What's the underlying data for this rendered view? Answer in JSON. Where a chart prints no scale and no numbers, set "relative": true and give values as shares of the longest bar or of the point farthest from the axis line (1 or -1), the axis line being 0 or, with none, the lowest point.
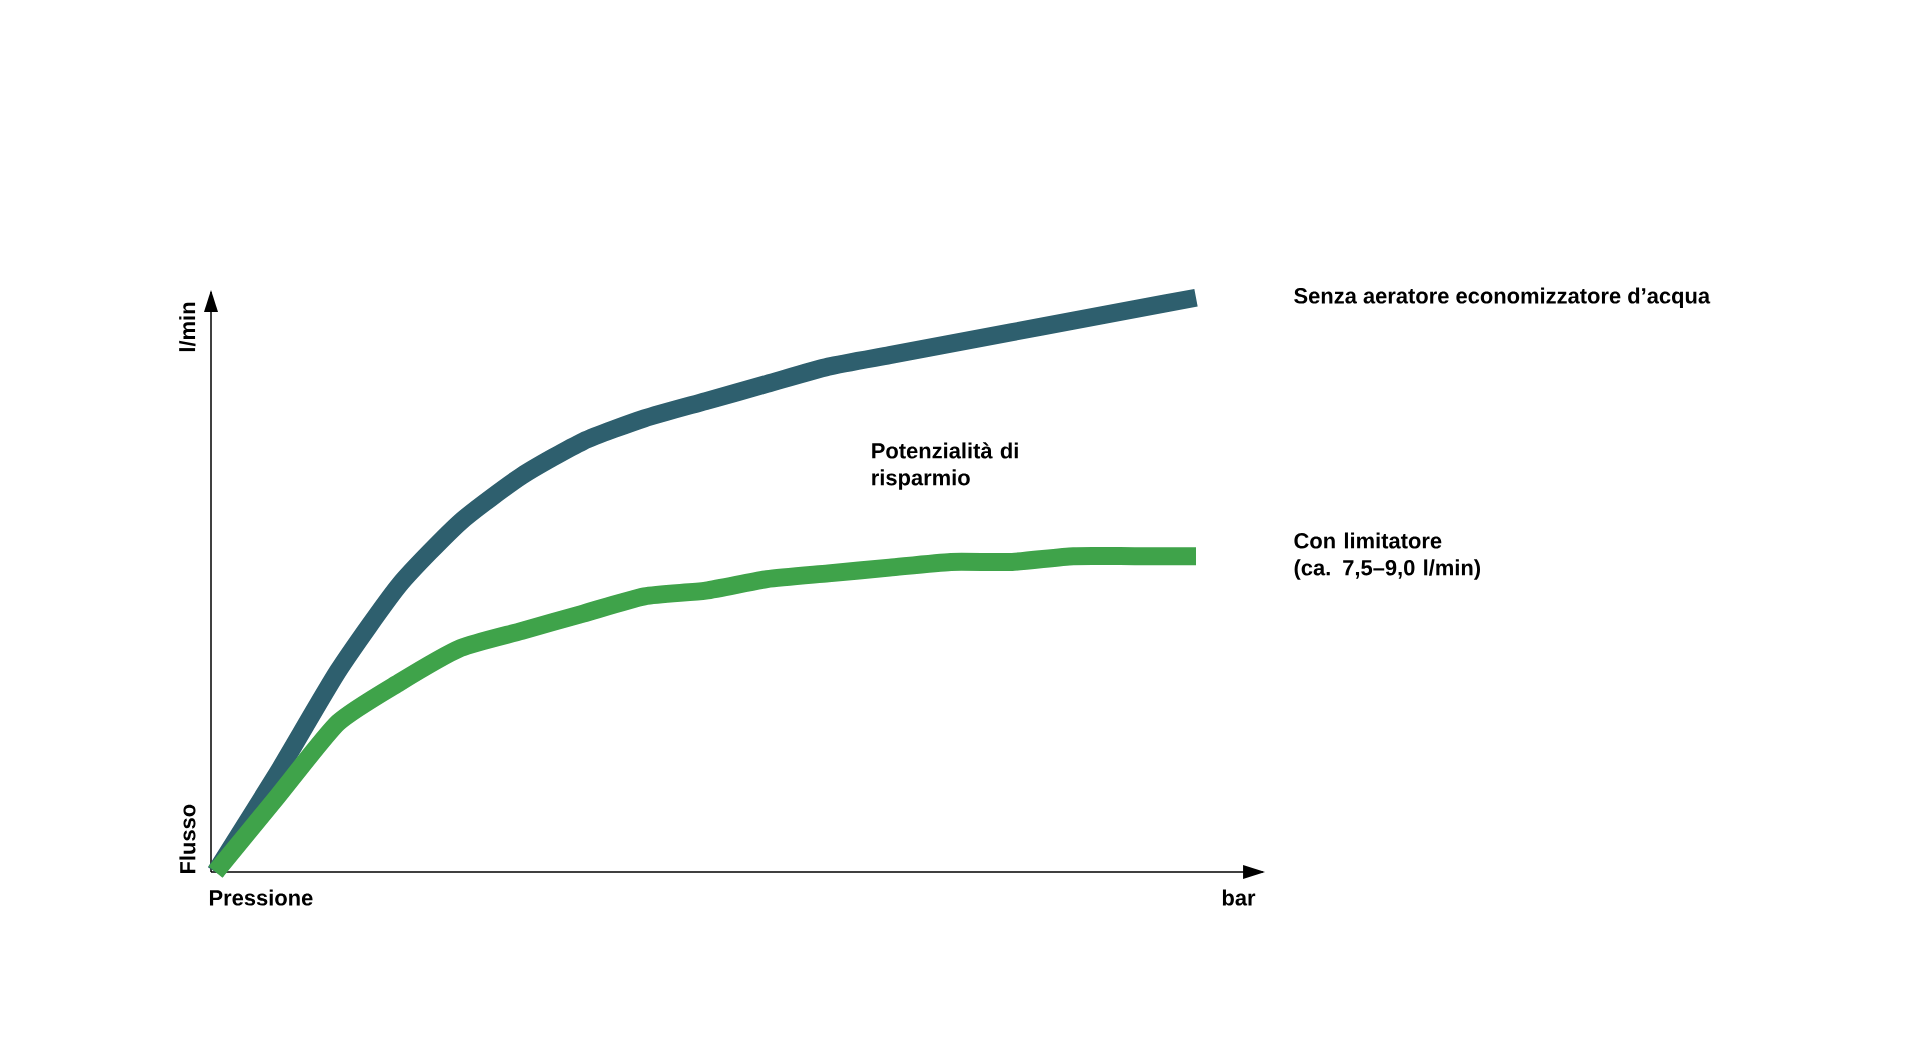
{
  "chart_data": {
    "type": "line",
    "relative": true,
    "xlabel": "Pressione",
    "ylabel": "Flusso",
    "categories": [
      null,
      null,
      null,
      null,
      null,
      null,
      null,
      null,
      null,
      null,
      null,
      null,
      null,
      null,
      null,
      null,
      null
    ],
    "series": [
      {
        "name": "Senza aeratore economizzatore d’acqua",
        "color": "#2e5f6e",
        "values": [
          0,
          0.17,
          0.35,
          0.5,
          0.61,
          0.69,
          0.75,
          0.79,
          0.82,
          0.85,
          0.88,
          0.9,
          0.92,
          0.94,
          0.96,
          0.98,
          1
        ]
      },
      {
        "name": "Con limitatore (ca. 7,5–9,0 l/min)",
        "color": "#3fa34a",
        "values": [
          0,
          0.13,
          0.26,
          0.33,
          0.39,
          0.42,
          0.45,
          0.48,
          0.49,
          0.51,
          0.52,
          0.53,
          0.54,
          0.54,
          0.55,
          0.55,
          0.55
        ]
      }
    ],
    "annotations": [
      "Potenzialità di risparmio",
      "l/min",
      "bar"
    ],
    "legend": false,
    "marker": "none",
    "line_style": "solid"
  }
}
